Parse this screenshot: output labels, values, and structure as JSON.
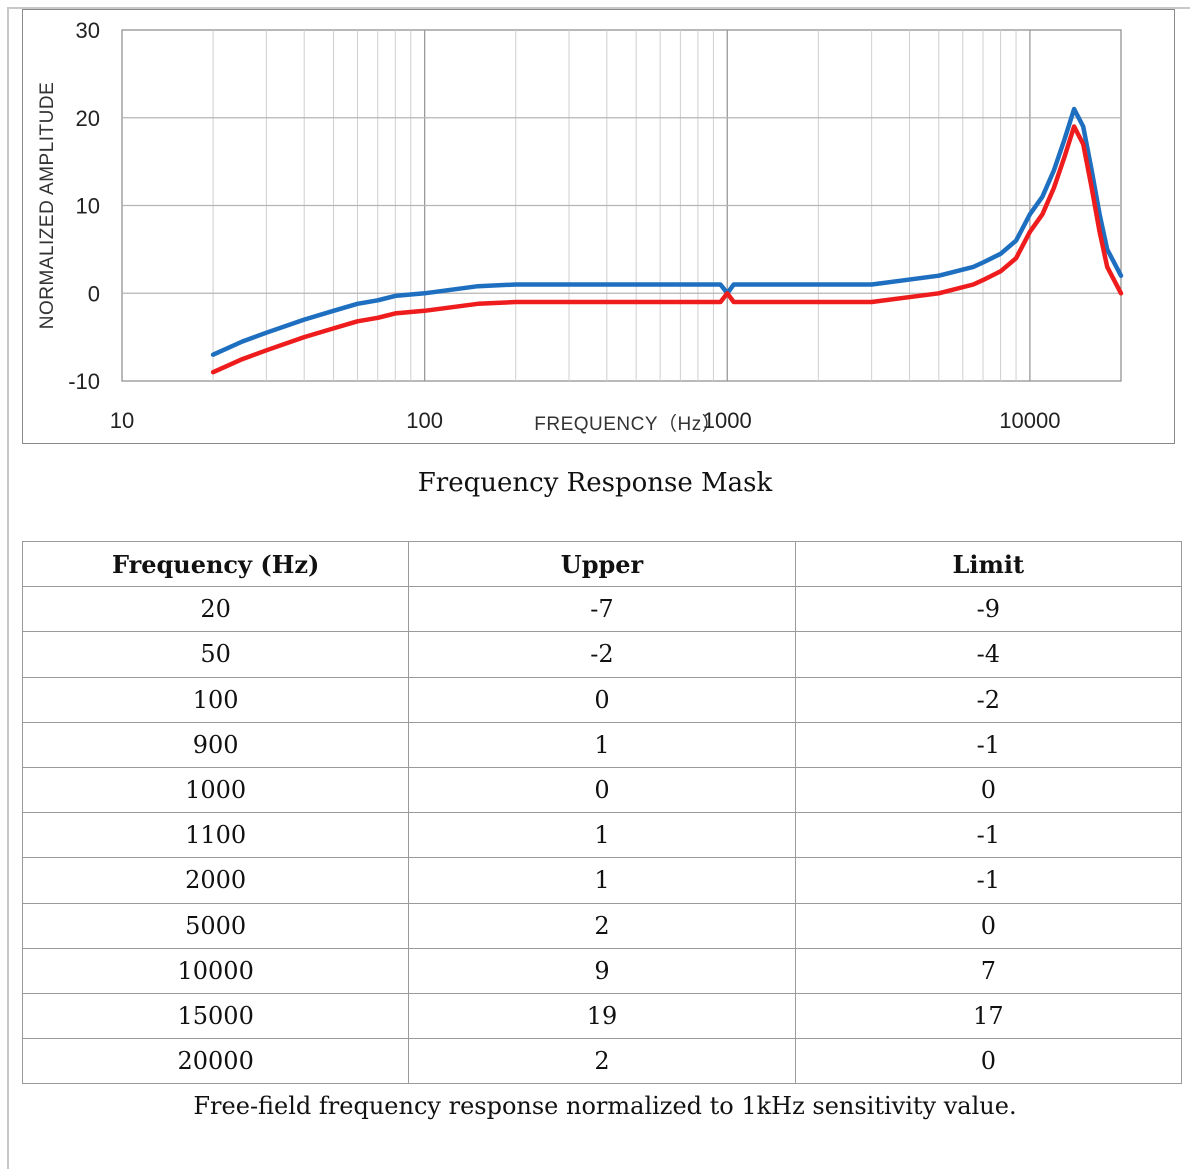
{
  "chart_data": {
    "type": "line",
    "title": "Frequency Response Mask",
    "xlabel": "FREQUENCY（Hz）",
    "ylabel": "NORMALIZED AMPLITUDE",
    "xscale": "log",
    "xlim": [
      10,
      20000
    ],
    "ylim": [
      -10,
      30
    ],
    "x_ticks": [
      "10",
      "100",
      "1000",
      "10000"
    ],
    "y_ticks": [
      "30",
      "20",
      "10",
      "0",
      "-10"
    ],
    "grid": true,
    "legend": "none",
    "series": [
      {
        "color": "#1f6fc1",
        "x": [
          20,
          25,
          30,
          40,
          50,
          60,
          70,
          80,
          100,
          150,
          200,
          300,
          500,
          700,
          900,
          950,
          1000,
          1050,
          1100,
          1300,
          2000,
          3000,
          5000,
          6500,
          7000,
          8000,
          9000,
          10000,
          11000,
          12000,
          13000,
          14000,
          15000,
          16000,
          17000,
          18000,
          20000
        ],
        "values": [
          -7,
          -5.5,
          -4.5,
          -3,
          -2,
          -1.2,
          -0.8,
          -0.3,
          0,
          0.8,
          1,
          1,
          1,
          1,
          1,
          1,
          0,
          1,
          1,
          1,
          1,
          1,
          2,
          3,
          3.5,
          4.5,
          6,
          9,
          11,
          14,
          17.5,
          21,
          19,
          14,
          9,
          5,
          2
        ]
      },
      {
        "color": "#ee1c1c",
        "x": [
          20,
          25,
          30,
          40,
          50,
          60,
          70,
          80,
          100,
          150,
          200,
          300,
          500,
          700,
          900,
          950,
          1000,
          1050,
          1100,
          1300,
          2000,
          3000,
          5000,
          6500,
          7000,
          8000,
          9000,
          10000,
          11000,
          12000,
          13000,
          14000,
          15000,
          16000,
          17000,
          18000,
          20000
        ],
        "values": [
          -9,
          -7.5,
          -6.5,
          -5,
          -4,
          -3.2,
          -2.8,
          -2.3,
          -2,
          -1.2,
          -1,
          -1,
          -1,
          -1,
          -1,
          -1,
          0,
          -1,
          -1,
          -1,
          -1,
          -1,
          0,
          1,
          1.5,
          2.5,
          4,
          7,
          9,
          12,
          15.5,
          19,
          17,
          12,
          7,
          3,
          0
        ]
      }
    ]
  },
  "table": {
    "headers": [
      "Frequency (Hz)",
      "Upper",
      "Limit"
    ],
    "rows": [
      [
        "20",
        "-7",
        "-9"
      ],
      [
        "50",
        "-2",
        "-4"
      ],
      [
        "100",
        "0",
        "-2"
      ],
      [
        "900",
        "1",
        "-1"
      ],
      [
        "1000",
        "0",
        "0"
      ],
      [
        "1100",
        "1",
        "-1"
      ],
      [
        "2000",
        "1",
        "-1"
      ],
      [
        "5000",
        "2",
        "0"
      ],
      [
        "10000",
        "9",
        "7"
      ],
      [
        "15000",
        "19",
        "17"
      ],
      [
        "20000",
        "2",
        "0"
      ]
    ]
  },
  "footnote": "Free-field frequency response normalized to 1kHz sensitivity value."
}
